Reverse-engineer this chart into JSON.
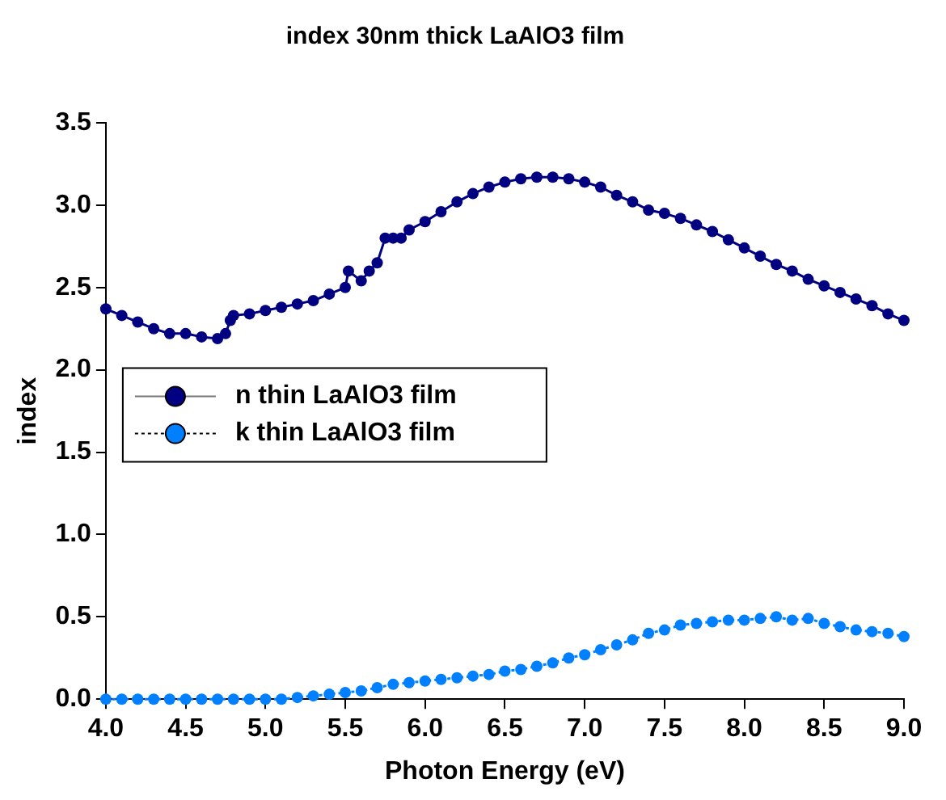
{
  "chart_data": {
    "type": "line",
    "title": "index 30nm thick LaAlO3 film",
    "xlabel": "Photon Energy (eV)",
    "ylabel": "index",
    "xlim": [
      4.0,
      9.0
    ],
    "xticks": [
      {
        "value": 4,
        "label": "4.0"
      },
      {
        "value": 4.5,
        "label": "4.5"
      },
      {
        "value": 5,
        "label": "5.0"
      },
      {
        "value": 5.5,
        "label": "5.5"
      },
      {
        "value": 6,
        "label": "6.0"
      },
      {
        "value": 6.5,
        "label": "6.5"
      },
      {
        "value": 7,
        "label": "7.0"
      },
      {
        "value": 7.5,
        "label": "7.5"
      },
      {
        "value": 8,
        "label": "8.0"
      },
      {
        "value": 8.5,
        "label": "8.5"
      },
      {
        "value": 9,
        "label": "9.0"
      }
    ],
    "ylim": [
      0,
      3.5
    ],
    "yticks": [
      {
        "value": 0,
        "label": "0.0"
      },
      {
        "value": 0.5,
        "label": "0.5"
      },
      {
        "value": 1,
        "label": "1.0"
      },
      {
        "value": 1.5,
        "label": "1.5"
      },
      {
        "value": 2,
        "label": "2.0"
      },
      {
        "value": 2.5,
        "label": "2.5"
      },
      {
        "value": 3,
        "label": "3.0"
      },
      {
        "value": 3.5,
        "label": "3.5"
      }
    ],
    "grid": false,
    "legend": "left",
    "marker": "circle",
    "series": [
      {
        "name": "n thin LaAlO3 film",
        "color": "#000080",
        "line_style": "solid",
        "x": [
          4.0,
          4.1,
          4.2,
          4.3,
          4.4,
          4.5,
          4.6,
          4.7,
          4.75,
          4.78,
          4.8,
          4.9,
          5.0,
          5.1,
          5.2,
          5.3,
          5.4,
          5.5,
          5.52,
          5.6,
          5.65,
          5.7,
          5.75,
          5.8,
          5.85,
          5.9,
          6.0,
          6.1,
          6.2,
          6.3,
          6.4,
          6.5,
          6.6,
          6.7,
          6.8,
          6.9,
          7.0,
          7.1,
          7.2,
          7.3,
          7.4,
          7.5,
          7.6,
          7.7,
          7.8,
          7.9,
          8.0,
          8.1,
          8.2,
          8.3,
          8.4,
          8.5,
          8.6,
          8.7,
          8.8,
          8.9,
          9.0
        ],
        "values": [
          2.37,
          2.33,
          2.29,
          2.25,
          2.22,
          2.22,
          2.2,
          2.19,
          2.22,
          2.3,
          2.33,
          2.34,
          2.36,
          2.38,
          2.4,
          2.42,
          2.46,
          2.5,
          2.6,
          2.54,
          2.6,
          2.65,
          2.8,
          2.8,
          2.8,
          2.85,
          2.9,
          2.96,
          3.02,
          3.07,
          3.11,
          3.14,
          3.16,
          3.17,
          3.17,
          3.16,
          3.14,
          3.11,
          3.06,
          3.02,
          2.97,
          2.95,
          2.92,
          2.88,
          2.84,
          2.79,
          2.74,
          2.69,
          2.64,
          2.6,
          2.55,
          2.51,
          2.47,
          2.43,
          2.39,
          2.34,
          2.3
        ]
      },
      {
        "name": "k thin LaAlO3 film",
        "color": "#0080ff",
        "line_style": "dotted",
        "x": [
          4.0,
          4.1,
          4.2,
          4.3,
          4.4,
          4.5,
          4.6,
          4.7,
          4.8,
          4.9,
          5.0,
          5.1,
          5.2,
          5.3,
          5.4,
          5.5,
          5.6,
          5.7,
          5.8,
          5.9,
          6.0,
          6.1,
          6.2,
          6.3,
          6.4,
          6.5,
          6.6,
          6.7,
          6.8,
          6.9,
          7.0,
          7.1,
          7.2,
          7.3,
          7.4,
          7.5,
          7.6,
          7.7,
          7.8,
          7.9,
          8.0,
          8.1,
          8.2,
          8.3,
          8.4,
          8.5,
          8.6,
          8.7,
          8.8,
          8.9,
          9.0
        ],
        "values": [
          0.0,
          0.0,
          0.0,
          0.0,
          0.0,
          0.0,
          0.0,
          0.0,
          0.0,
          0.0,
          0.0,
          0.0,
          0.01,
          0.02,
          0.03,
          0.04,
          0.05,
          0.07,
          0.09,
          0.1,
          0.11,
          0.12,
          0.13,
          0.14,
          0.15,
          0.17,
          0.18,
          0.2,
          0.22,
          0.25,
          0.27,
          0.3,
          0.33,
          0.36,
          0.4,
          0.42,
          0.45,
          0.46,
          0.47,
          0.48,
          0.48,
          0.49,
          0.5,
          0.48,
          0.49,
          0.46,
          0.44,
          0.42,
          0.41,
          0.4,
          0.38
        ]
      }
    ]
  }
}
